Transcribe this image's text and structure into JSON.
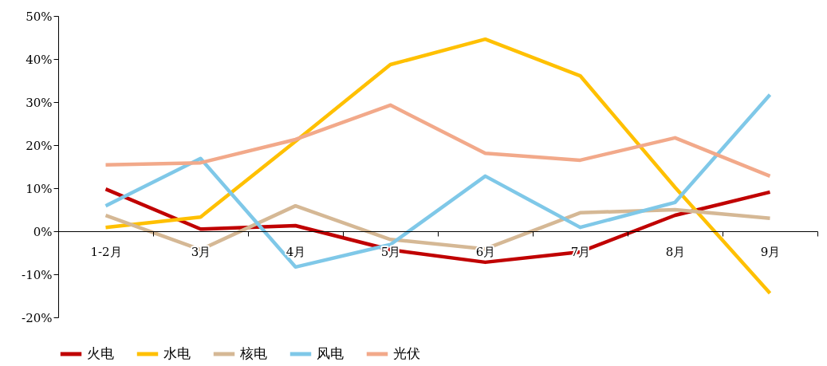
{
  "chart_data": {
    "type": "line",
    "categories": [
      "1-2月",
      "3月",
      "4月",
      "5月",
      "6月",
      "7月",
      "8月",
      "9月"
    ],
    "ylim": [
      -20,
      50
    ],
    "yticks": [
      {
        "value": -20,
        "label": "-20%"
      },
      {
        "value": -10,
        "label": "-10%"
      },
      {
        "value": 0,
        "label": "0%"
      },
      {
        "value": 10,
        "label": "10%"
      },
      {
        "value": 20,
        "label": "20%"
      },
      {
        "value": 30,
        "label": "30%"
      },
      {
        "value": 40,
        "label": "40%"
      },
      {
        "value": 50,
        "label": "50%"
      }
    ],
    "grid": false,
    "legend": "bottom",
    "marker": "none",
    "line_style": "solid",
    "series": [
      {
        "name": "火电",
        "color": "#c00000",
        "values": [
          9.8,
          0.5,
          1.3,
          -4.3,
          -7.2,
          -4.8,
          3.7,
          9.1
        ]
      },
      {
        "name": "水电",
        "color": "#ffc000",
        "values": [
          0.9,
          3.3,
          20.9,
          38.7,
          44.6,
          36.1,
          10.2,
          -14.4
        ]
      },
      {
        "name": "核电",
        "color": "#d5b895",
        "values": [
          3.7,
          -4.3,
          5.9,
          -1.9,
          -4.1,
          4.3,
          5.0,
          3.0
        ]
      },
      {
        "name": "风电",
        "color": "#7fc8e8",
        "values": [
          5.9,
          16.9,
          -8.3,
          -3.1,
          12.8,
          0.9,
          6.7,
          31.7
        ]
      },
      {
        "name": "光伏",
        "color": "#f2a98a",
        "values": [
          15.4,
          15.9,
          21.3,
          29.3,
          18.1,
          16.5,
          21.7,
          12.8
        ]
      }
    ]
  }
}
